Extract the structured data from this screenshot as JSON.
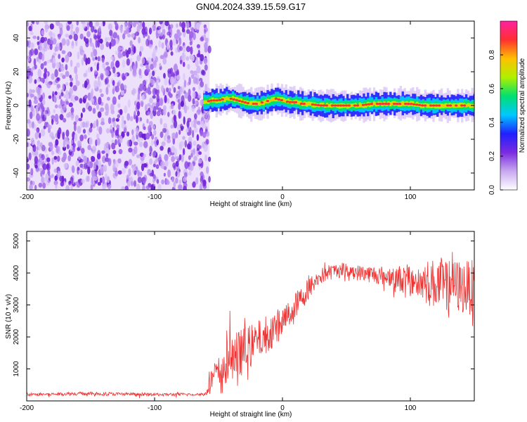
{
  "title": "GN04.2024.339.15.59.G17",
  "chart_data": [
    {
      "type": "heatmap",
      "title": "GN04.2024.339.15.59.G17",
      "xlabel": "Height of straight line (km)",
      "ylabel": "Frequency (Hz)",
      "xlim": [
        -200,
        150
      ],
      "ylim": [
        -50,
        50
      ],
      "xticks": [
        -200,
        -100,
        0,
        100
      ],
      "yticks": [
        -40,
        -20,
        0,
        20,
        40
      ],
      "noise_region_x": [
        -200,
        -57
      ],
      "signal_track": {
        "x": [
          -62,
          -55,
          -50,
          -45,
          -40,
          -35,
          -30,
          -25,
          -20,
          -15,
          -10,
          -5,
          0,
          5,
          10,
          15,
          20,
          30,
          40,
          50,
          60,
          70,
          80,
          90,
          100,
          110,
          120,
          130,
          140,
          150
        ],
        "freq": [
          2,
          3,
          3,
          4,
          4,
          3,
          2,
          1,
          1,
          2,
          3,
          4,
          3,
          2,
          2,
          1,
          1,
          0,
          0,
          0,
          0,
          1,
          1,
          1,
          1,
          0,
          0,
          0,
          0,
          0
        ]
      },
      "colorbar": {
        "label": "Normalized spectral amplitude",
        "min": 0.0,
        "max": 1.0,
        "ticks": [
          "0.0",
          "0.2",
          "0.4",
          "0.6",
          "0.8"
        ],
        "colors": [
          "#ffffff",
          "#c8a8f0",
          "#7b2be0",
          "#2020ff",
          "#00c8ff",
          "#00e070",
          "#b0f000",
          "#ffc000",
          "#ff3030",
          "#ff20a0"
        ]
      }
    },
    {
      "type": "line",
      "xlabel": "Height of straight line (km)",
      "ylabel": "SNR (10 * v/v)",
      "xlim": [
        -200,
        150
      ],
      "ylim": [
        0,
        5300
      ],
      "xticks": [
        -200,
        -100,
        0,
        100
      ],
      "yticks": [
        1000,
        2000,
        3000,
        4000,
        5000
      ],
      "color": "#ee3333",
      "series": [
        {
          "x": [
            -200,
            -180,
            -160,
            -140,
            -120,
            -100,
            -80,
            -60,
            -55,
            -50,
            -45,
            -40,
            -35,
            -30,
            -25,
            -20,
            -15,
            -10,
            -5,
            0,
            5,
            10,
            15,
            20,
            25,
            30,
            35,
            40,
            45,
            50,
            55,
            60,
            65,
            70,
            75,
            80,
            85,
            90,
            95,
            100,
            105,
            110,
            115,
            120,
            125,
            130,
            135,
            140,
            145,
            150
          ],
          "y": [
            200,
            210,
            230,
            220,
            210,
            200,
            200,
            210,
            700,
            900,
            1100,
            1300,
            1400,
            1600,
            1700,
            1900,
            2000,
            2200,
            2300,
            2500,
            2700,
            3000,
            3200,
            3500,
            3700,
            3900,
            4000,
            4050,
            4100,
            4100,
            4050,
            4000,
            4000,
            3950,
            3950,
            3900,
            3900,
            3850,
            3800,
            3800,
            3750,
            3700,
            3700,
            3650,
            3650,
            3600,
            3600,
            3550,
            3550,
            3550
          ],
          "spread": [
            50,
            50,
            60,
            60,
            50,
            50,
            50,
            50,
            450,
            500,
            650,
            800,
            800,
            700,
            700,
            600,
            600,
            600,
            550,
            500,
            450,
            400,
            400,
            350,
            300,
            250,
            250,
            250,
            250,
            250,
            250,
            250,
            250,
            300,
            300,
            300,
            350,
            400,
            450,
            500,
            600,
            700,
            750,
            800,
            850,
            850,
            850,
            850,
            850,
            850
          ]
        }
      ]
    }
  ]
}
